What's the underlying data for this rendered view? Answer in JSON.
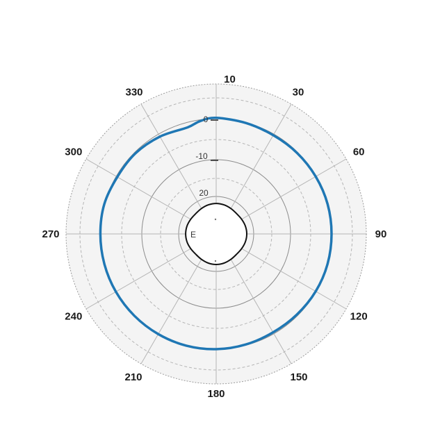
{
  "chart_data": {
    "type": "line",
    "polar": true,
    "title": "",
    "angle_tick_labels": [
      "10",
      "30",
      "60",
      "90",
      "120",
      "150",
      "180",
      "210",
      "240",
      "270",
      "300",
      "330"
    ],
    "radial_tick_labels": [
      "0",
      "-10",
      "20"
    ],
    "inner_marker_label": "E",
    "grid": true,
    "colors": {
      "background_disk": "#f4f4f4",
      "grid": "#9a9a9a",
      "outer_series": "#1f77b4",
      "inner_series": "#111111"
    },
    "series": [
      {
        "angles_deg": [
          0,
          15,
          30,
          45,
          60,
          75,
          90,
          105,
          120,
          135,
          150,
          165,
          180,
          195,
          210,
          225,
          240,
          255,
          270,
          285,
          300,
          315,
          330,
          345,
          352,
          360
        ],
        "values": [
          0.2,
          -0.1,
          -0.3,
          -0.2,
          -0.1,
          0.0,
          0.0,
          0.0,
          -0.1,
          -0.3,
          -0.4,
          -0.2,
          0.0,
          0.1,
          0.1,
          0.1,
          0.1,
          0.1,
          0.1,
          0.1,
          -0.3,
          -0.3,
          -0.7,
          -1.2,
          -0.3,
          0.2
        ]
      },
      {
        "angles_deg": [
          0,
          15,
          30,
          45,
          60,
          75,
          90,
          105,
          120,
          135,
          150,
          165,
          180,
          195,
          210,
          225,
          240,
          255,
          270,
          285,
          300,
          315,
          330,
          345,
          360
        ],
        "values": [
          25.5,
          25.2,
          24.6,
          24.1,
          24.6,
          25.3,
          25.6,
          25.3,
          24.6,
          24.1,
          24.6,
          25.3,
          25.6,
          25.3,
          24.6,
          24.1,
          24.6,
          25.3,
          25.5,
          25.3,
          24.6,
          24.1,
          24.6,
          25.2,
          25.5
        ]
      }
    ]
  }
}
